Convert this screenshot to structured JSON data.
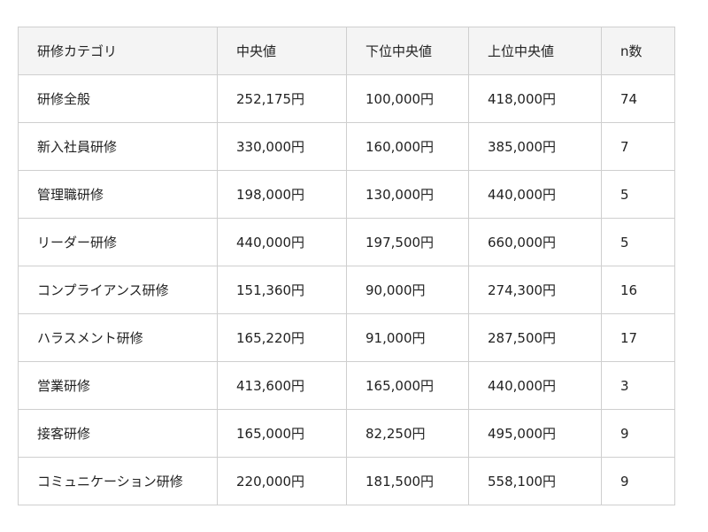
{
  "table": {
    "headers": [
      "研修カテゴリ",
      "中央値",
      "下位中央値",
      "上位中央値",
      "n数"
    ],
    "rows": [
      [
        "研修全般",
        "252,175円",
        "100,000円",
        "418,000円",
        "74"
      ],
      [
        "新入社員研修",
        "330,000円",
        "160,000円",
        "385,000円",
        "7"
      ],
      [
        "管理職研修",
        "198,000円",
        "130,000円",
        "440,000円",
        "5"
      ],
      [
        "リーダー研修",
        "440,000円",
        "197,500円",
        "660,000円",
        "5"
      ],
      [
        "コンプライアンス研修",
        "151,360円",
        "90,000円",
        "274,300円",
        "16"
      ],
      [
        "ハラスメント研修",
        "165,220円",
        "91,000円",
        "287,500円",
        "17"
      ],
      [
        "営業研修",
        "413,600円",
        "165,000円",
        "440,000円",
        "3"
      ],
      [
        "接客研修",
        "165,000円",
        "82,250円",
        "495,000円",
        "9"
      ],
      [
        "コミュニケーション研修",
        "220,000円",
        "181,500円",
        "558,100円",
        "9"
      ]
    ]
  }
}
